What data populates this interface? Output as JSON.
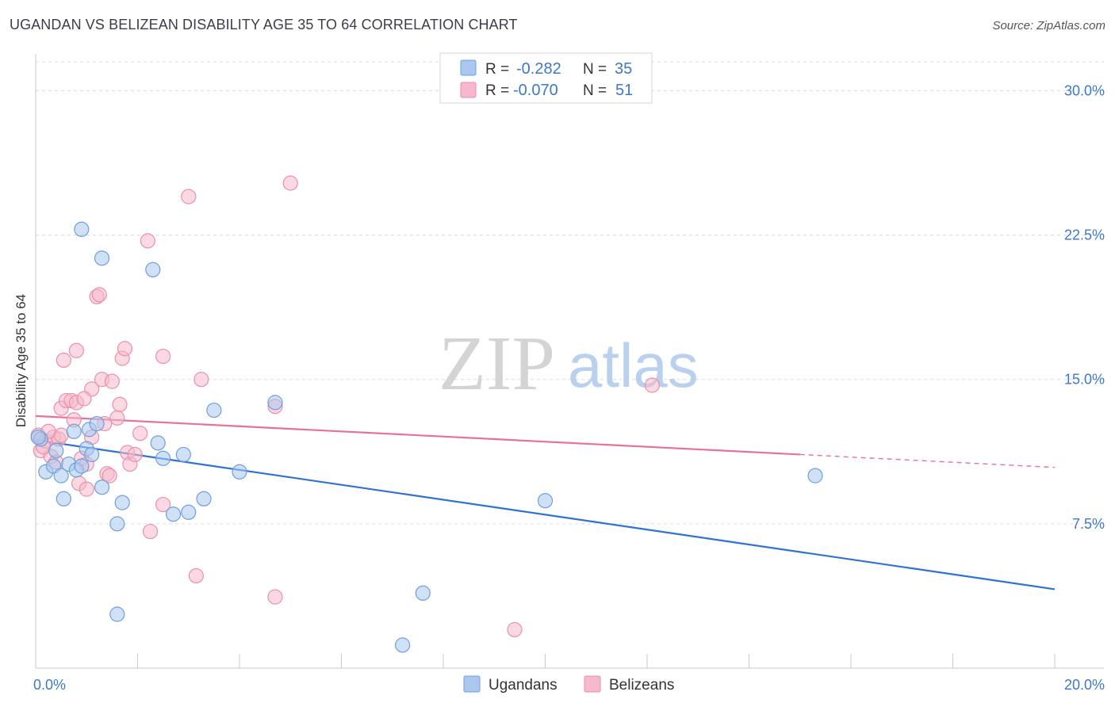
{
  "title": "UGANDAN VS BELIZEAN DISABILITY AGE 35 TO 64 CORRELATION CHART",
  "source": "Source: ZipAtlas.com",
  "watermark": {
    "zip": "ZIP",
    "atlas": "atlas"
  },
  "colors": {
    "ugandans_fill": "#aac8ef",
    "ugandans_stroke": "#6f9fdb",
    "ugandans_line": "#2f73d0",
    "belizeans_fill": "#f5b9cb",
    "belizeans_stroke": "#eb8fab",
    "belizeans_line": "#e8709a",
    "tick_text": "#3d78c9",
    "grid": "#dcdcdc"
  },
  "legend": {
    "rows": [
      {
        "series": "ugandans",
        "r_label": "R =",
        "r_value": "-0.282",
        "n_label": "N =",
        "n_value": "35"
      },
      {
        "series": "belizeans",
        "r_label": "R =",
        "r_value": "-0.070",
        "n_label": "N =",
        "n_value": "51"
      }
    ]
  },
  "chart_data": {
    "type": "scatter",
    "title": "UGANDAN VS BELIZEAN DISABILITY AGE 35 TO 64 CORRELATION CHART",
    "xlabel": "",
    "ylabel": "Disability Age 35 to 64",
    "xlim": [
      0,
      20
    ],
    "ylim": [
      0,
      31.5
    ],
    "x_tick_labels": [
      "0.0%",
      "20.0%"
    ],
    "x_tick_values": [
      0,
      20
    ],
    "y_ticks": [
      {
        "value": 7.5,
        "label": "7.5%"
      },
      {
        "value": 15.0,
        "label": "15.0%"
      },
      {
        "value": 22.5,
        "label": "22.5%"
      },
      {
        "value": 30.0,
        "label": "30.0%"
      }
    ],
    "x_minor_ticks": [
      0,
      2,
      4,
      6,
      8,
      10,
      12,
      14,
      16,
      18,
      20
    ],
    "series": [
      {
        "name": "Ugandans",
        "key": "ugandans",
        "points": [
          [
            0.1,
            11.9
          ],
          [
            0.2,
            10.2
          ],
          [
            0.35,
            10.5
          ],
          [
            0.4,
            11.3
          ],
          [
            0.5,
            10.0
          ],
          [
            0.55,
            8.8
          ],
          [
            0.65,
            10.6
          ],
          [
            0.75,
            12.3
          ],
          [
            0.8,
            10.3
          ],
          [
            0.9,
            10.5
          ],
          [
            1.0,
            11.4
          ],
          [
            1.05,
            12.4
          ],
          [
            1.1,
            11.1
          ],
          [
            1.2,
            12.7
          ],
          [
            1.3,
            9.4
          ],
          [
            0.9,
            22.8
          ],
          [
            1.3,
            21.3
          ],
          [
            2.3,
            20.7
          ],
          [
            1.6,
            7.5
          ],
          [
            1.7,
            8.6
          ],
          [
            1.6,
            2.8
          ],
          [
            2.4,
            11.7
          ],
          [
            2.5,
            10.9
          ],
          [
            2.7,
            8.0
          ],
          [
            2.9,
            11.1
          ],
          [
            3.0,
            8.1
          ],
          [
            3.3,
            8.8
          ],
          [
            3.5,
            13.4
          ],
          [
            4.0,
            10.2
          ],
          [
            4.7,
            13.8
          ],
          [
            7.2,
            1.2
          ],
          [
            7.6,
            3.9
          ],
          [
            10.0,
            8.7
          ],
          [
            15.3,
            10.0
          ],
          [
            0.05,
            12.0
          ]
        ],
        "trend": {
          "x": [
            0,
            20
          ],
          "y": [
            11.85,
            4.1
          ],
          "style": "solid"
        }
      },
      {
        "name": "Belizeans",
        "key": "belizeans",
        "points": [
          [
            0.05,
            12.1
          ],
          [
            0.1,
            11.3
          ],
          [
            0.2,
            11.8
          ],
          [
            0.3,
            11.0
          ],
          [
            0.35,
            12.0
          ],
          [
            0.4,
            10.7
          ],
          [
            0.45,
            11.9
          ],
          [
            0.5,
            12.1
          ],
          [
            0.5,
            13.5
          ],
          [
            0.55,
            16.0
          ],
          [
            0.6,
            13.9
          ],
          [
            0.7,
            13.9
          ],
          [
            0.75,
            12.9
          ],
          [
            0.8,
            13.8
          ],
          [
            0.8,
            16.5
          ],
          [
            0.85,
            9.6
          ],
          [
            0.9,
            10.9
          ],
          [
            1.0,
            10.6
          ],
          [
            1.0,
            9.3
          ],
          [
            1.1,
            12.0
          ],
          [
            1.1,
            14.5
          ],
          [
            1.2,
            19.3
          ],
          [
            1.25,
            19.4
          ],
          [
            1.3,
            15.0
          ],
          [
            1.35,
            12.7
          ],
          [
            1.4,
            10.1
          ],
          [
            1.45,
            10.0
          ],
          [
            1.5,
            14.9
          ],
          [
            1.6,
            13.0
          ],
          [
            1.65,
            13.7
          ],
          [
            1.7,
            16.1
          ],
          [
            1.75,
            16.6
          ],
          [
            1.8,
            11.2
          ],
          [
            1.85,
            10.6
          ],
          [
            1.95,
            11.1
          ],
          [
            2.05,
            12.2
          ],
          [
            2.2,
            22.2
          ],
          [
            2.25,
            7.1
          ],
          [
            2.5,
            8.5
          ],
          [
            2.5,
            16.2
          ],
          [
            3.0,
            24.5
          ],
          [
            3.15,
            4.8
          ],
          [
            3.25,
            15.0
          ],
          [
            4.7,
            13.6
          ],
          [
            4.7,
            3.7
          ],
          [
            5.0,
            25.2
          ],
          [
            9.4,
            2.0
          ],
          [
            12.1,
            14.7
          ],
          [
            0.15,
            11.5
          ],
          [
            0.25,
            12.3
          ],
          [
            0.95,
            14.0
          ]
        ],
        "trend": {
          "x": [
            0,
            15.0
          ],
          "y": [
            13.1,
            11.1
          ],
          "style": "solid"
        },
        "trend_extension": {
          "x": [
            15.0,
            20
          ],
          "y": [
            11.1,
            10.43
          ],
          "style": "dashed"
        }
      }
    ],
    "legend_bottom": [
      "Ugandans",
      "Belizeans"
    ]
  }
}
